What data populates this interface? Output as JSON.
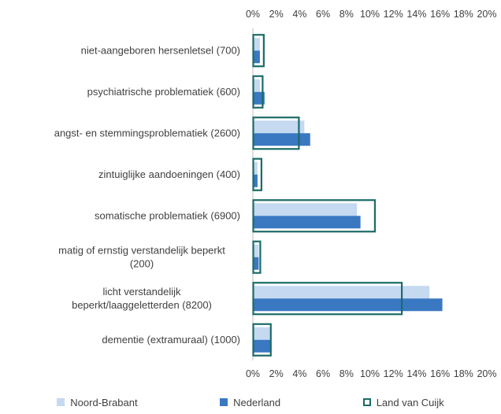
{
  "chart_data": {
    "type": "bar",
    "orientation": "horizontal",
    "categories": [
      [
        "niet-aangeboren hersenletsel (700)"
      ],
      [
        "psychiatrische problematiek (600)"
      ],
      [
        "angst- en stemmingsproblematiek (2600)"
      ],
      [
        "zintuiglijke aandoeningen (400)"
      ],
      [
        "somatische problematiek (6900)"
      ],
      [
        "matig of ernstig verstandelijk beperkt",
        "(200)"
      ],
      [
        "licht verstandelijk",
        "beperkt/laaggeletterden (8200)"
      ],
      [
        "dementie (extramuraal) (1000)"
      ]
    ],
    "series": [
      {
        "name": "Noord-Brabant",
        "values": [
          0.6,
          0.6,
          4.4,
          0.4,
          8.9,
          0.5,
          15.1,
          1.5
        ],
        "color": "#c5d9f1"
      },
      {
        "name": "Nederland",
        "values": [
          0.6,
          1.0,
          4.9,
          0.4,
          9.2,
          0.5,
          16.2,
          1.5
        ],
        "color": "#3a78c2"
      },
      {
        "name": "Land van Cuijk",
        "values": [
          0.9,
          0.8,
          3.9,
          0.7,
          10.4,
          0.6,
          12.7,
          1.5
        ],
        "color": "#1b6b66",
        "style": "outline"
      }
    ],
    "xlim": [
      0,
      20
    ],
    "x_ticks": [
      "0%",
      "2%",
      "4%",
      "6%",
      "8%",
      "10%",
      "12%",
      "14%",
      "16%",
      "18%",
      "20%"
    ],
    "x_axis_position": "top and bottom",
    "grid": false,
    "legend_position": "bottom"
  }
}
